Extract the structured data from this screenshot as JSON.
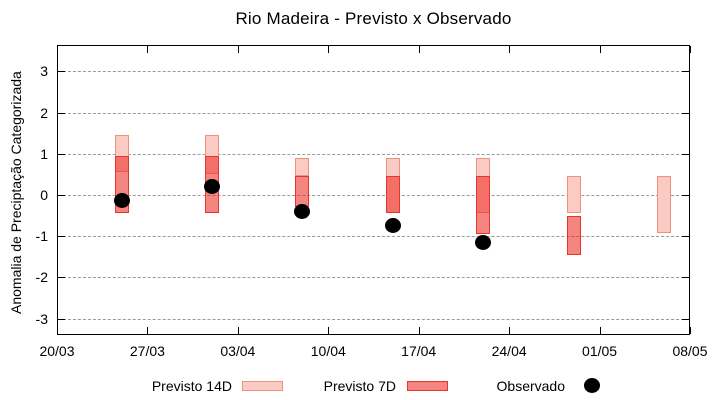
{
  "title": "Rio Madeira - Previsto x Observado",
  "colors": {
    "previsto_14d_fill": "#f9cbc3",
    "previsto_14d_border": "#f0907e",
    "previsto_7d_fill_rgba": "rgba(238,44,36,0.58)",
    "previsto_7d_border": "#e6352b",
    "observado": "#000000",
    "grid": "#9a9a9a",
    "axis": "#000000"
  },
  "legend": {
    "items": [
      {
        "label": "Previsto 14D",
        "kind": "box-light"
      },
      {
        "label": "Previsto 7D",
        "kind": "box-red"
      },
      {
        "label": "Observado",
        "kind": "dot"
      }
    ]
  },
  "chart_data": {
    "type": "bar",
    "variant": "floating-range-boxes-with-scatter",
    "title": "Rio Madeira - Previsto x Observado",
    "xlabel": "",
    "ylabel": "Anomalia de Preciptação Categorizada",
    "grid": true,
    "legend_position": "bottom",
    "x_range_days": [
      0,
      49
    ],
    "x_tick_days": [
      0,
      7,
      14,
      21,
      28,
      35,
      42,
      49
    ],
    "x_tick_labels": [
      "20/03",
      "27/03",
      "03/04",
      "10/04",
      "17/04",
      "24/04",
      "01/05",
      "08/05"
    ],
    "y_ticks": [
      3,
      2,
      1,
      0,
      -1,
      -2,
      -3
    ],
    "y_tick_labels": [
      "3",
      "2",
      "1",
      "0",
      "-1",
      "-2",
      "-3"
    ],
    "ylim": [
      -3.4,
      3.64
    ],
    "categories": [
      "25/03",
      "01/04",
      "08/04",
      "15/04",
      "22/04",
      "29/04",
      "06/05"
    ],
    "category_days": [
      5,
      12,
      19,
      26,
      33,
      40,
      47
    ],
    "series": [
      {
        "name": "Previsto 14D",
        "type": "range-box",
        "ranges": [
          {
            "date": "25/03",
            "day": 5,
            "low": 0.55,
            "high": 1.45
          },
          {
            "date": "01/04",
            "day": 12,
            "low": 0.5,
            "high": 1.45
          },
          {
            "date": "08/04",
            "day": 19,
            "low": 0.45,
            "high": 0.9
          },
          {
            "date": "15/04",
            "day": 26,
            "low": -0.43,
            "high": 0.9
          },
          {
            "date": "22/04",
            "day": 33,
            "low": -0.43,
            "high": 0.9
          },
          {
            "date": "29/04",
            "day": 40,
            "low": -0.43,
            "high": 0.45
          },
          {
            "date": "06/05",
            "day": 47,
            "low": -0.93,
            "high": 0.45
          }
        ]
      },
      {
        "name": "Previsto 7D",
        "type": "range-box",
        "ranges": [
          {
            "date": "25/03",
            "day": 5,
            "low": -0.43,
            "high": 0.95
          },
          {
            "date": "01/04",
            "day": 12,
            "low": -0.43,
            "high": 0.95
          },
          {
            "date": "08/04",
            "day": 19,
            "low": -0.3,
            "high": 0.45
          },
          {
            "date": "15/04",
            "day": 26,
            "low": -0.43,
            "high": 0.45
          },
          {
            "date": "22/04",
            "day": 33,
            "low": -0.95,
            "high": 0.45
          },
          {
            "date": "29/04",
            "day": 40,
            "low": -1.45,
            "high": -0.51
          },
          {
            "date": "06/05",
            "day": 47,
            "low": null,
            "high": null
          }
        ]
      },
      {
        "name": "Observado",
        "type": "scatter",
        "points": [
          {
            "date": "25/03",
            "day": 5,
            "value": -0.13
          },
          {
            "date": "01/04",
            "day": 12,
            "value": 0.21
          },
          {
            "date": "08/04",
            "day": 19,
            "value": -0.4
          },
          {
            "date": "15/04",
            "day": 26,
            "value": -0.74
          },
          {
            "date": "22/04",
            "day": 33,
            "value": -1.16
          },
          {
            "date": "29/04",
            "day": 40,
            "value": null
          },
          {
            "date": "06/05",
            "day": 47,
            "value": null
          }
        ]
      }
    ]
  }
}
